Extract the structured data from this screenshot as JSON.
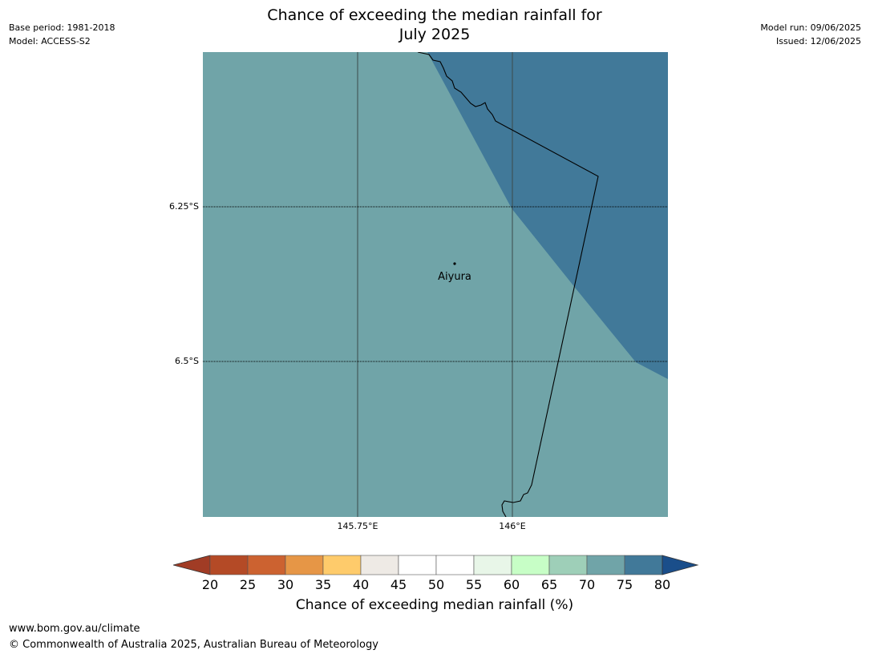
{
  "meta": {
    "base_period": "Base period: 1981-2018",
    "model": "Model: ACCESS-S2",
    "model_run": "Model run: 09/06/2025",
    "issued": "Issued: 12/06/2025"
  },
  "title": {
    "line1": "Chance of exceeding the median rainfall for",
    "line2": "July 2025"
  },
  "map": {
    "lat_labels": [
      "6.25°S",
      "6.5°S"
    ],
    "lon_labels": [
      "145.75°E",
      "146°E"
    ],
    "place": "Aiyura",
    "colors": {
      "region_70_75": "#70a4a8",
      "region_75_80": "#417999",
      "border": "#000000",
      "gridline": "#3a4a4a"
    }
  },
  "colorbar": {
    "ticks": [
      "20",
      "25",
      "30",
      "35",
      "40",
      "45",
      "50",
      "55",
      "60",
      "65",
      "70",
      "75",
      "80"
    ],
    "colors": [
      "#a13c25",
      "#b44a26",
      "#cc6230",
      "#e69646",
      "#fecb6b",
      "#eeeae5",
      "#ffffff",
      "#ffffff",
      "#e8f6e8",
      "#c7fec6",
      "#9ecfb8",
      "#70a4a8",
      "#417999",
      "#1a4e8a"
    ],
    "label": "Chance of exceeding median rainfall (%)"
  },
  "footer": {
    "url": "www.bom.gov.au/climate",
    "copyright": "© Commonwealth of Australia 2025, Australian Bureau of Meteorology"
  }
}
